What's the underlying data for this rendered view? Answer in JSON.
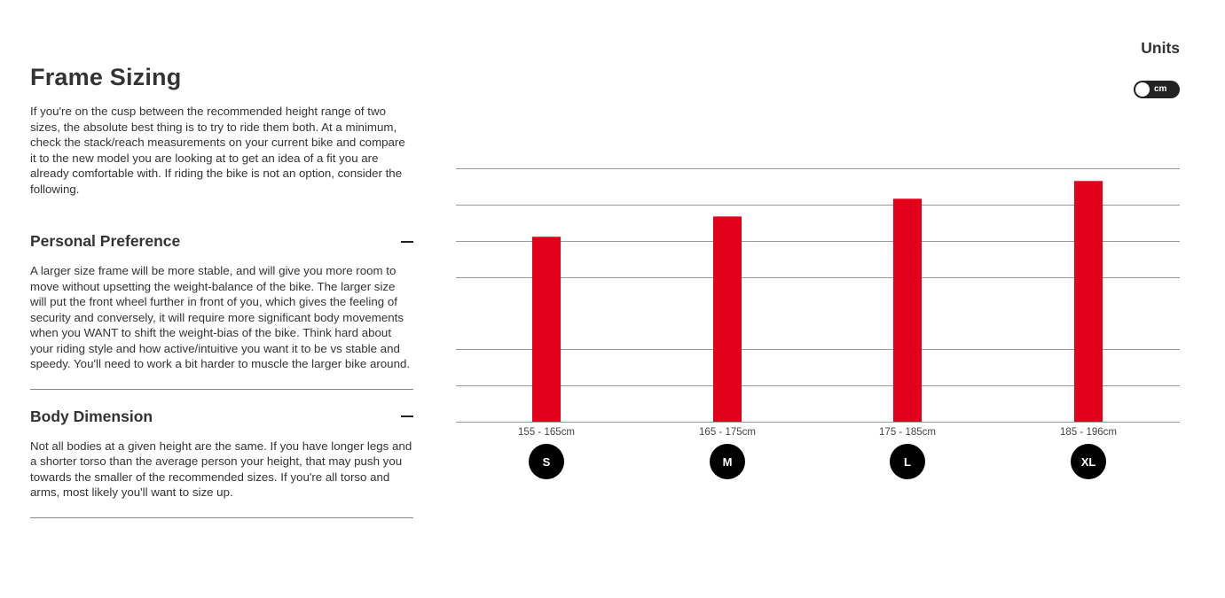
{
  "title": "Frame Sizing",
  "intro": "If you're on the cusp between the recommended height range of two sizes, the absolute best thing is to try to ride them both. At a minimum, check the stack/reach measurements on your current bike and compare it to the new model you are looking at to get an idea of a fit you are already comfortable with. If riding the bike is not an option, consider the following.",
  "sections": [
    {
      "heading": "Personal Preference",
      "icon": "minus-icon",
      "body": "A larger size frame will be more stable, and will give you more room to move without upsetting the weight-balance of the bike. The larger size will put the front wheel further in front of you, which gives the feeling of security and conversely, it will require more significant body movements when you WANT to shift the weight-bias of the bike. Think hard about your riding style and how active/intuitive you want it to be vs stable and speedy. You'll need to work a bit harder to muscle the larger bike around."
    },
    {
      "heading": "Body Dimension",
      "icon": "minus-icon",
      "body": "Not all bodies at a given height are the same. If you have longer legs and a shorter torso than the average person your height, that may push you towards the smaller of the recommended sizes. If you're all torso and arms, most likely you'll want to size up."
    }
  ],
  "units": {
    "label": "Units",
    "toggle_value": "cm"
  },
  "chart_data": {
    "type": "bar",
    "categories": [
      "155 - 165cm",
      "165 - 175cm",
      "175 - 185cm",
      "185 - 196cm"
    ],
    "size_labels": [
      "S",
      "M",
      "L",
      "XL"
    ],
    "values": [
      0.73,
      0.81,
      0.88,
      0.95
    ],
    "ylim": [
      0,
      1
    ],
    "grid": true,
    "gridlines": [
      0.143,
      0.286,
      0.571,
      0.714,
      0.857,
      1.0
    ],
    "bar_color": "#e2001a",
    "grid_color": "#999999",
    "badge_color": "#000000"
  }
}
